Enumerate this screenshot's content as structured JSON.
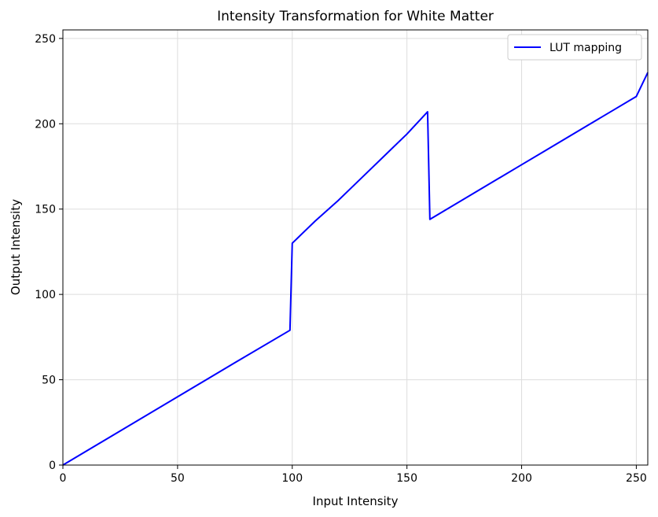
{
  "chart_data": {
    "type": "line",
    "title": "Intensity Transformation for White Matter",
    "xlabel": "Input Intensity",
    "ylabel": "Output Intensity",
    "xlim": [
      0,
      255
    ],
    "ylim": [
      0,
      255
    ],
    "xticks": [
      0,
      50,
      100,
      150,
      200,
      250
    ],
    "yticks": [
      0,
      50,
      100,
      150,
      200,
      250
    ],
    "grid": true,
    "legend_position": "top-right",
    "series_color": "#0000ff",
    "series": [
      {
        "name": "LUT mapping",
        "x": [
          0,
          25,
          50,
          75,
          99,
          100,
          110,
          120,
          130,
          140,
          150,
          159,
          160,
          170,
          180,
          190,
          200,
          210,
          220,
          230,
          240,
          250,
          255
        ],
        "values": [
          0,
          20,
          40,
          60,
          79,
          130,
          143,
          155,
          168,
          181,
          194,
          207,
          144,
          152,
          160,
          168,
          176,
          184,
          192,
          200,
          208,
          216,
          230
        ]
      }
    ]
  }
}
